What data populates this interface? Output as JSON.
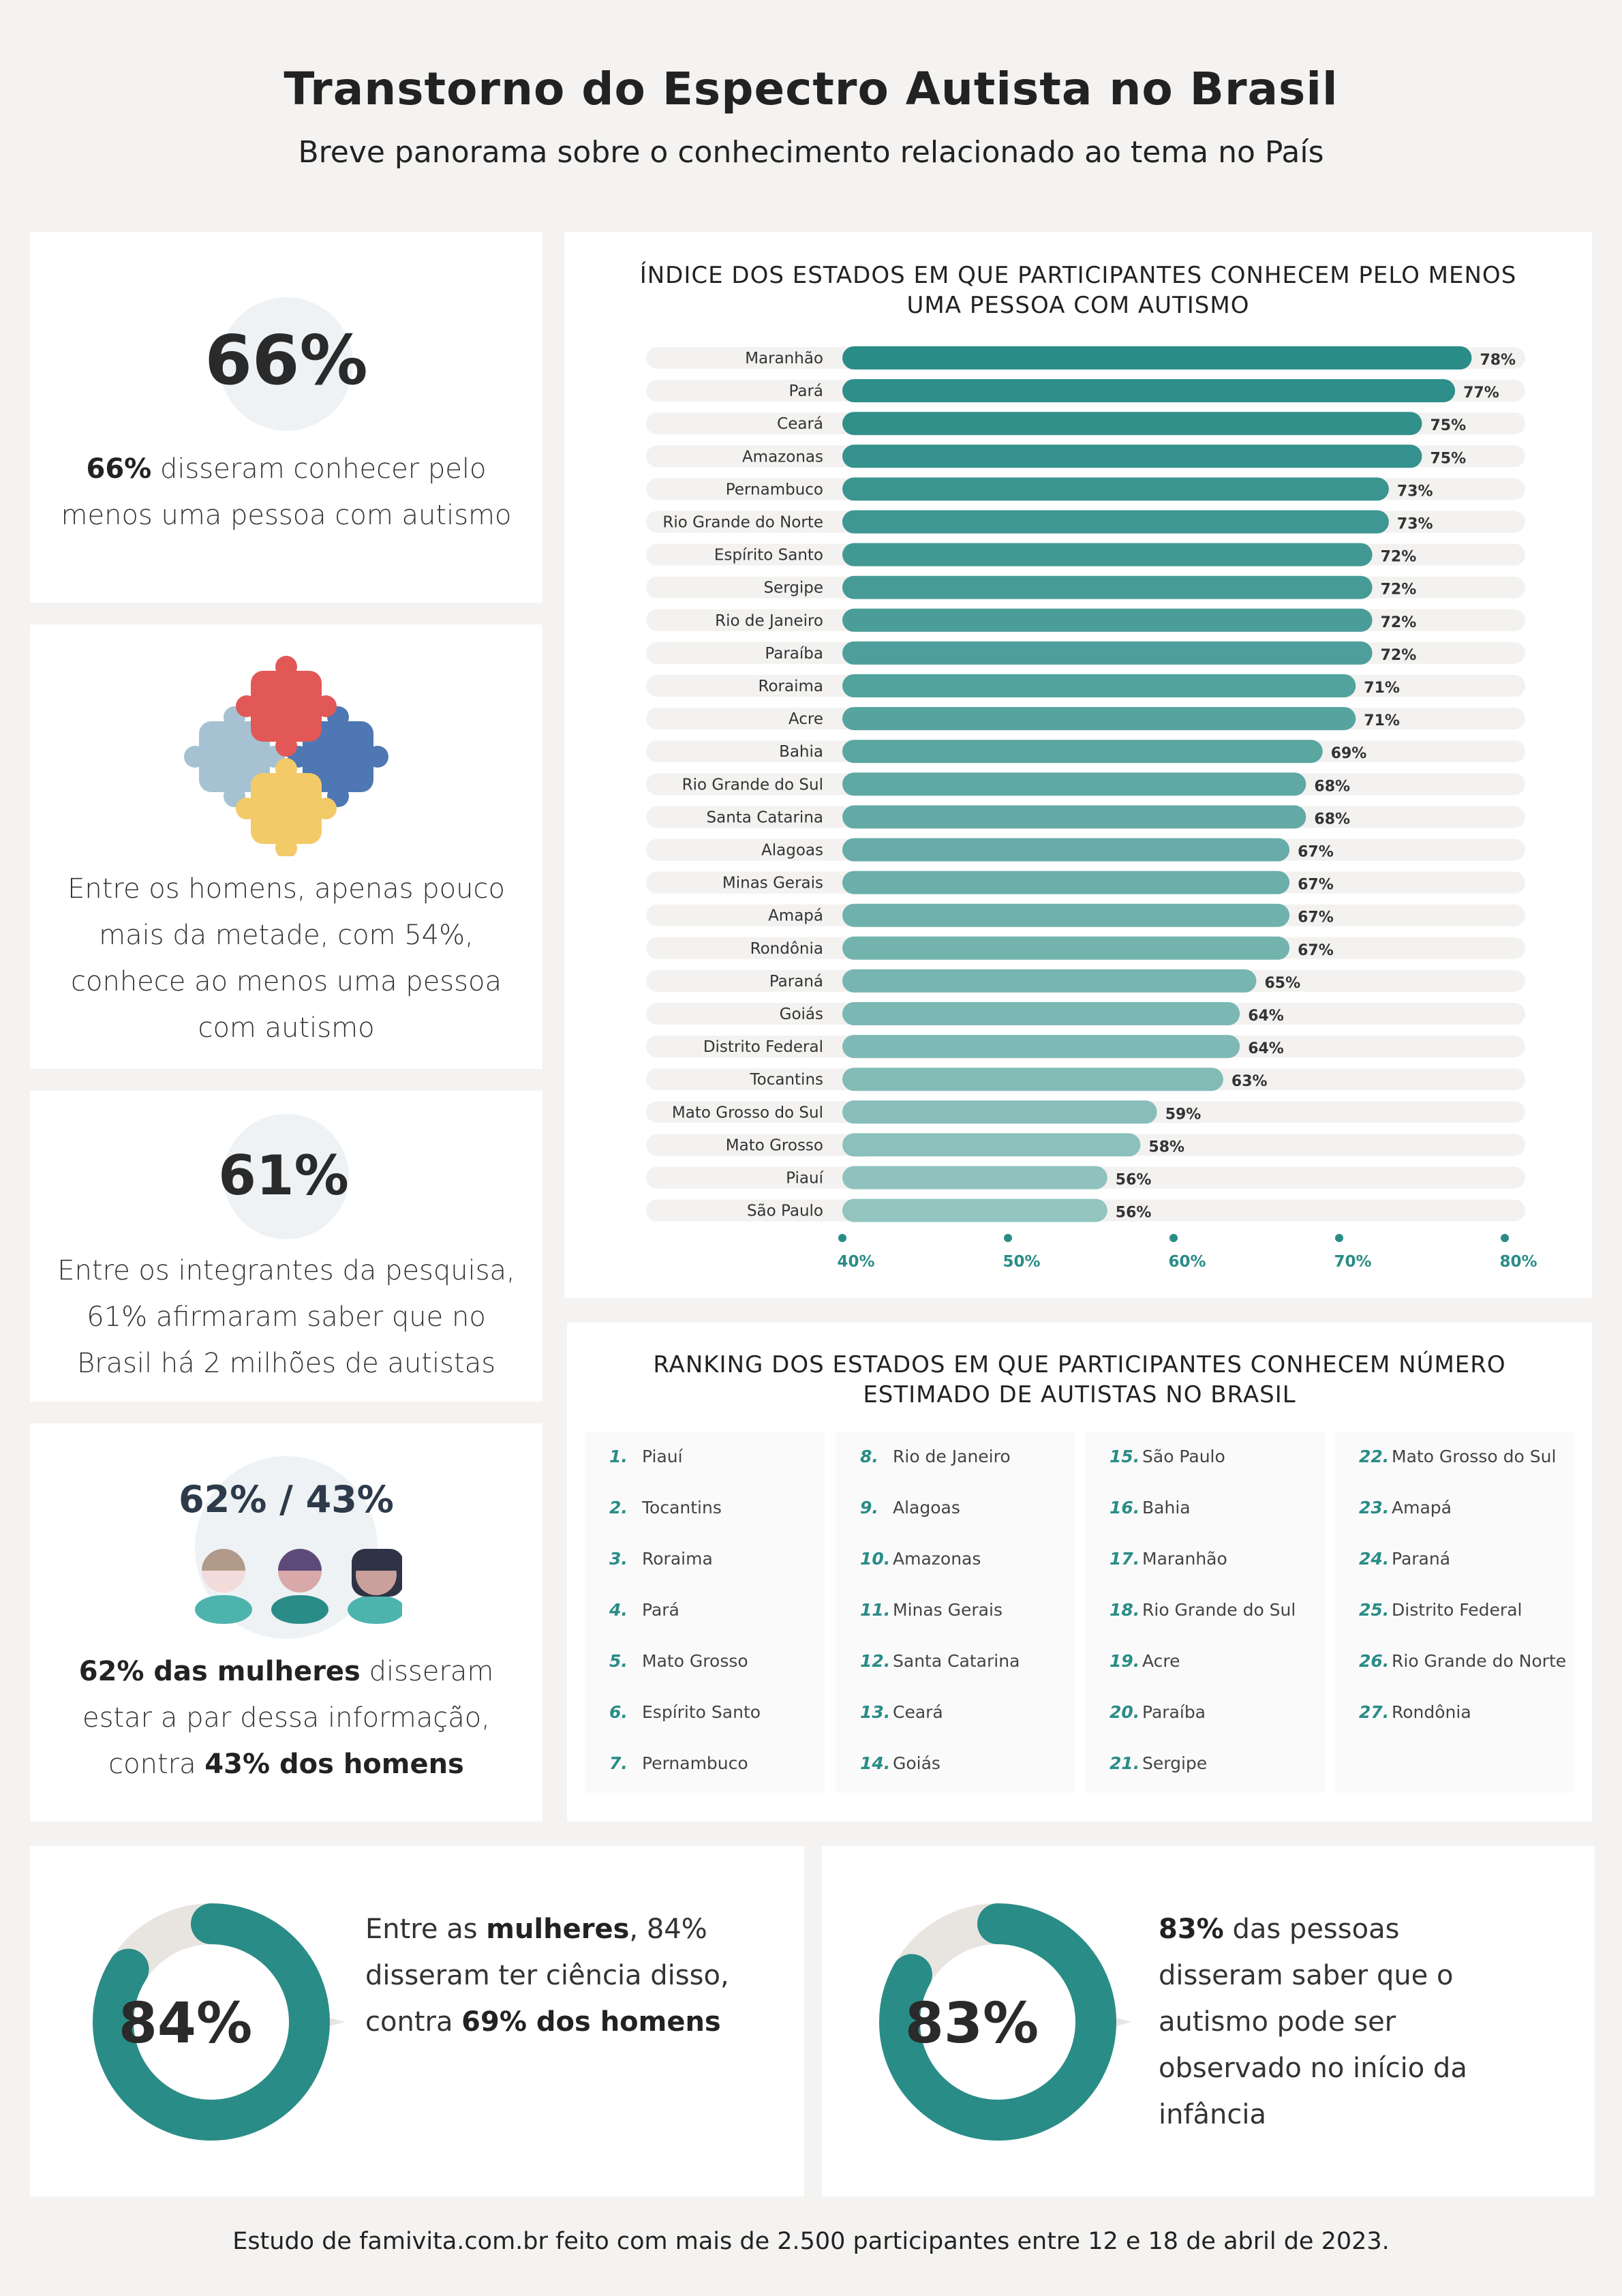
{
  "header": {
    "title": "Transtorno do Espectro Autista no Brasil",
    "subtitle": "Breve panorama sobre o conhecimento relacionado ao tema no País"
  },
  "stat1": {
    "value": "66%",
    "text_bold": "66%",
    "text_rest": " disseram conhecer pelo menos uma pessoa com autismo"
  },
  "stat2": {
    "text": "Entre os homens, apenas pouco mais da metade, com 54%, conhece ao menos uma pessoa com autismo",
    "icon": "puzzle-icon",
    "colors": [
      "#e15857",
      "#4e77b3",
      "#f3ca68",
      "#a6c2d2"
    ]
  },
  "stat3": {
    "value": "61%",
    "text": "Entre os integrantes da pesquisa, 61% afirmaram saber que no Brasil há 2 milhões de autistas"
  },
  "stat4": {
    "value": "62% / 43%",
    "text_bold1": "62% das mulheres",
    "text_mid": " disseram estar a par dessa informação, contra ",
    "text_bold2": "43% dos homens",
    "icon": "people-icon"
  },
  "stat5": {
    "value": "84%",
    "fraction": 0.84,
    "t1": "Entre as ",
    "b1": "mulheres",
    "t2": ", 84% disseram ter ciência disso, contra ",
    "b2": "69% dos homens"
  },
  "stat6": {
    "value": "83%",
    "fraction": 0.83,
    "b1": "83%",
    "t1": " das pessoas disseram saber que o autismo pode ser observado no início da infância"
  },
  "chart_data": {
    "type": "bar",
    "orientation": "horizontal",
    "title": "ÍNDICE DOS ESTADOS EM QUE PARTICIPANTES CONHECEM PELO MENOS UMA PESSOA COM AUTISMO",
    "categories": [
      "Maranhão",
      "Pará",
      "Ceará",
      "Amazonas",
      "Pernambuco",
      "Rio Grande do Norte",
      "Espírito Santo",
      "Sergipe",
      "Rio de Janeiro",
      "Paraíba",
      "Roraima",
      "Acre",
      "Bahia",
      "Rio Grande do Sul",
      "Santa Catarina",
      "Alagoas",
      "Minas Gerais",
      "Amapá",
      "Rondônia",
      "Paraná",
      "Goiás",
      "Distrito Federal",
      "Tocantins",
      "Mato Grosso do Sul",
      "Mato Grosso",
      "Piauí",
      "São Paulo"
    ],
    "values": [
      78,
      77,
      75,
      75,
      73,
      73,
      72,
      72,
      72,
      72,
      71,
      71,
      69,
      68,
      68,
      67,
      67,
      67,
      67,
      65,
      64,
      64,
      63,
      59,
      58,
      56,
      56
    ],
    "value_labels": [
      "78%",
      "77%",
      "75%",
      "75%",
      "73%",
      "73%",
      "72%",
      "72%",
      "72%",
      "72%",
      "71%",
      "71%",
      "69%",
      "68%",
      "68%",
      "67%",
      "67%",
      "67%",
      "67%",
      "65%",
      "64%",
      "64%",
      "63%",
      "59%",
      "58%",
      "56%",
      "56%"
    ],
    "xlim": [
      40,
      80
    ],
    "ticks": [
      "40%",
      "50%",
      "60%",
      "70%",
      "80%"
    ],
    "tick_values": [
      40,
      50,
      60,
      70,
      80
    ],
    "color_dark": "#2a8c87",
    "color_light": "#93c4c0",
    "grid": false
  },
  "ranking": {
    "title": "RANKING DOS ESTADOS EM QUE PARTICIPANTES CONHECEM NÚMERO ESTIMADO DE AUTISTAS NO BRASIL",
    "columns": [
      [
        {
          "n": "1.",
          "s": "Piauí"
        },
        {
          "n": "2.",
          "s": "Tocantins"
        },
        {
          "n": "3.",
          "s": "Roraima"
        },
        {
          "n": "4.",
          "s": "Pará"
        },
        {
          "n": "5.",
          "s": "Mato Grosso"
        },
        {
          "n": "6.",
          "s": "Espírito Santo"
        },
        {
          "n": "7.",
          "s": "Pernambuco"
        }
      ],
      [
        {
          "n": "8.",
          "s": "Rio de Janeiro"
        },
        {
          "n": "9.",
          "s": "Alagoas"
        },
        {
          "n": "10.",
          "s": "Amazonas"
        },
        {
          "n": "11.",
          "s": "Minas Gerais"
        },
        {
          "n": "12.",
          "s": "Santa Catarina"
        },
        {
          "n": "13.",
          "s": "Ceará"
        },
        {
          "n": "14.",
          "s": "Goiás"
        }
      ],
      [
        {
          "n": "15.",
          "s": "São Paulo"
        },
        {
          "n": "16.",
          "s": "Bahia"
        },
        {
          "n": "17.",
          "s": "Maranhão"
        },
        {
          "n": "18.",
          "s": "Rio Grande do Sul"
        },
        {
          "n": "19.",
          "s": "Acre"
        },
        {
          "n": "20.",
          "s": "Paraíba"
        },
        {
          "n": "21.",
          "s": "Sergipe"
        }
      ],
      [
        {
          "n": "22.",
          "s": "Mato Grosso do Sul"
        },
        {
          "n": "23.",
          "s": "Amapá"
        },
        {
          "n": "24.",
          "s": "Paraná"
        },
        {
          "n": "25.",
          "s": "Distrito Federal"
        },
        {
          "n": "26.",
          "s": "Rio Grande do Norte"
        },
        {
          "n": "27.",
          "s": "Rondônia"
        }
      ]
    ]
  },
  "footer": {
    "text": "Estudo de famivita.com.br feito com mais de 2.500 participantes entre 12 e 18 de abril de 2023."
  }
}
